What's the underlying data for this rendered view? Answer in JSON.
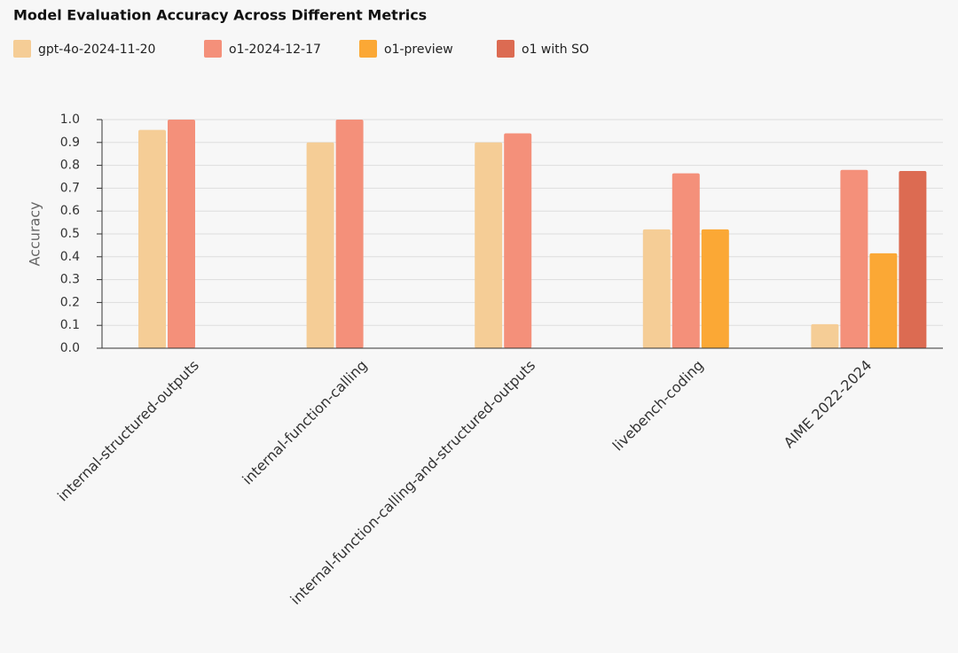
{
  "chart_data": {
    "type": "bar",
    "title": "Model Evaluation Accuracy Across Different Metrics",
    "y_label": "Accuracy",
    "categories": [
      "internal-structured-outputs",
      "internal-function-calling",
      "internal-function-calling-and-structured-outputs",
      "livebench-coding",
      "AIME 2022-2024"
    ],
    "series": [
      {
        "name": "gpt-4o-2024-11-20",
        "color": "#f5cd96",
        "values": [
          0.955,
          0.9,
          0.9,
          0.52,
          0.105
        ]
      },
      {
        "name": "o1-2024-12-17",
        "color": "#f4907a",
        "values": [
          1.0,
          1.0,
          0.94,
          0.765,
          0.78
        ]
      },
      {
        "name": "o1-preview",
        "color": "#fba835",
        "values": [
          null,
          null,
          null,
          0.52,
          0.415
        ]
      },
      {
        "name": "o1 with SO",
        "color": "#dc6b52",
        "values": [
          null,
          null,
          null,
          null,
          0.775
        ]
      }
    ],
    "ylim": [
      0,
      1.0
    ],
    "yticks": [
      {
        "value": 0,
        "label": "0.0"
      },
      0.1,
      0.2,
      0.3,
      0.4,
      0.5,
      0.6,
      0.7,
      0.8,
      0.9,
      {
        "value": 1.0,
        "label": "1.0"
      }
    ],
    "grid": true
  }
}
